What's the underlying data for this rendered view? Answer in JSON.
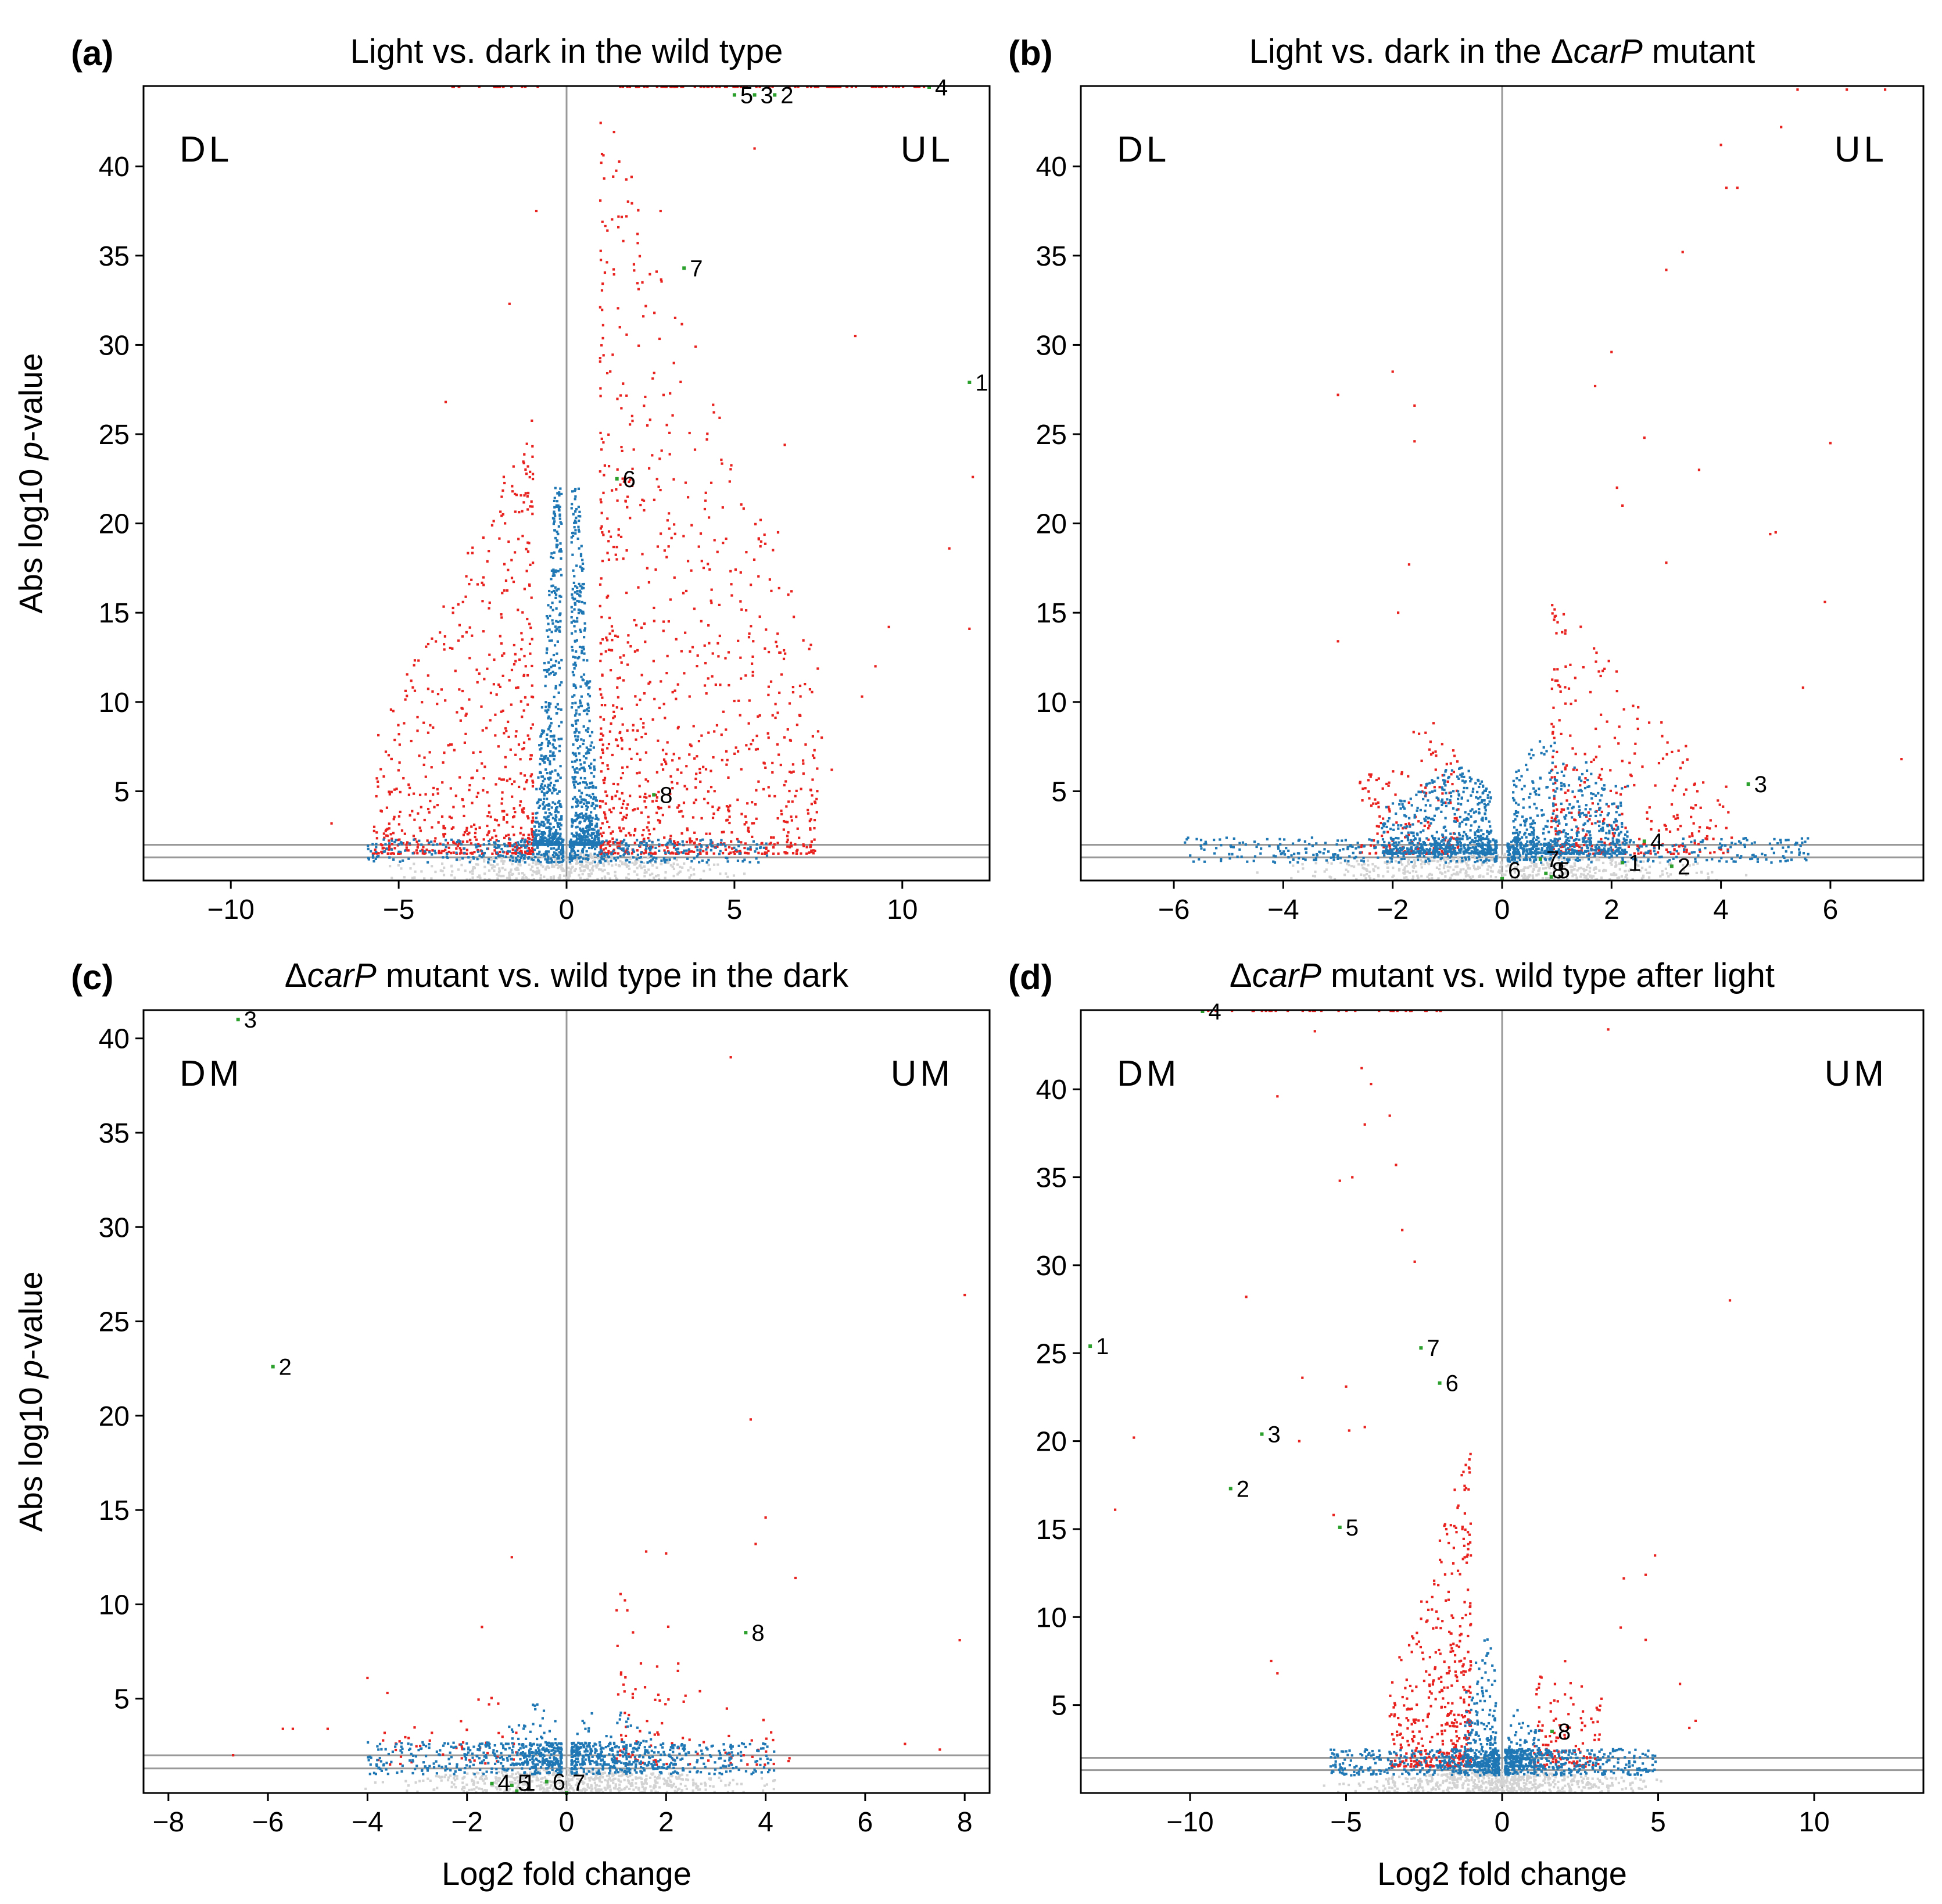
{
  "figure": {
    "y_label_prefix": "Abs log10 ",
    "y_label_italic": "p",
    "y_label_suffix": "-value",
    "x_label": "Log2 fold change"
  },
  "colors": {
    "significant": "#e8221f",
    "moderate": "#1f77b4",
    "nonsignificant": "#d3d3d3",
    "highlight": "#2ca02c",
    "threshold_line": "#999999"
  },
  "chart_data": [
    {
      "type": "scatter",
      "id": "a",
      "letter": "(a)",
      "title_parts": [
        {
          "t": "Light vs. dark in the wild type",
          "i": false
        }
      ],
      "xlim": [
        -12.6,
        12.6
      ],
      "ylim": [
        0,
        44.5
      ],
      "xticks": [
        -10,
        -5,
        0,
        5,
        10
      ],
      "yticks": [
        5,
        10,
        15,
        20,
        25,
        30,
        35,
        40
      ],
      "thresholds": [
        1.3,
        2.0
      ],
      "regions": {
        "left": "DL",
        "right": "UL"
      },
      "show_xlabel": false,
      "show_ylabel": true,
      "clouds": [
        {
          "kind": "ns",
          "x": [
            -6,
            6
          ],
          "ymax": 1.6,
          "n": 420
        },
        {
          "kind": "blue",
          "side": "neg",
          "x": [
            -6,
            -0.1
          ],
          "ymax": 2.1,
          "n": 260
        },
        {
          "kind": "blue",
          "side": "pos",
          "x": [
            0.1,
            6
          ],
          "ymax": 2.1,
          "n": 260
        },
        {
          "kind": "blue",
          "side": "neg",
          "x": [
            -1.0,
            -0.15
          ],
          "ymax": 22,
          "n": 520,
          "shape": "neck"
        },
        {
          "kind": "blue",
          "side": "pos",
          "x": [
            0.15,
            1.0
          ],
          "ymax": 22,
          "n": 520,
          "shape": "neck"
        },
        {
          "kind": "red",
          "side": "neg",
          "x": [
            -5.8,
            -1.0
          ],
          "ymax": 26,
          "n": 620,
          "shape": "tri"
        },
        {
          "kind": "red",
          "side": "pos",
          "x": [
            1.0,
            7.5
          ],
          "ymax": 44,
          "n": 950,
          "shape": "tri"
        }
      ],
      "extra_points": [
        [
          -0.9,
          37.5
        ],
        [
          -7.0,
          3.2
        ],
        [
          -3.6,
          26.8
        ],
        [
          8.6,
          30.5
        ],
        [
          12.1,
          22.6
        ],
        [
          11.4,
          18.6
        ],
        [
          12.0,
          14.1
        ],
        [
          9.6,
          14.2
        ],
        [
          9.2,
          12.0
        ],
        [
          8.8,
          10.3
        ],
        [
          6.7,
          16.2
        ],
        [
          7.1,
          11.0
        ],
        [
          6.3,
          19.5
        ],
        [
          6.5,
          24.4
        ],
        [
          7.6,
          8.0
        ],
        [
          7.9,
          6.2
        ],
        [
          -2.9,
          16.6
        ],
        [
          -1.7,
          32.3
        ],
        [
          2.8,
          37.5
        ],
        [
          5.6,
          41.0
        ]
      ],
      "top_band": [
        {
          "x": [
            -3.4,
            -0.8
          ],
          "y": 44.5,
          "n": 18
        },
        {
          "x": [
            1.6,
            10.8
          ],
          "y": 44.5,
          "n": 90
        }
      ],
      "labels": [
        {
          "n": "1",
          "x": 12.0,
          "y": 27.9
        },
        {
          "n": "2",
          "x": 6.2,
          "y": 44.0
        },
        {
          "n": "3",
          "x": 5.6,
          "y": 44.0
        },
        {
          "n": "4",
          "x": 10.8,
          "y": 44.5
        },
        {
          "n": "5",
          "x": 5.0,
          "y": 44.0
        },
        {
          "n": "6",
          "x": 1.5,
          "y": 22.5
        },
        {
          "n": "7",
          "x": 3.5,
          "y": 34.3
        },
        {
          "n": "8",
          "x": 2.6,
          "y": 4.8
        }
      ]
    },
    {
      "type": "scatter",
      "id": "b",
      "letter": "(b)",
      "title_parts": [
        {
          "t": "Light vs. dark in the Δ",
          "i": false
        },
        {
          "t": "carP",
          "i": true
        },
        {
          "t": " mutant",
          "i": false
        }
      ],
      "xlim": [
        -7.7,
        7.7
      ],
      "ylim": [
        0,
        44.5
      ],
      "xticks": [
        -6,
        -4,
        -2,
        0,
        2,
        4,
        6
      ],
      "yticks": [
        5,
        10,
        15,
        20,
        25,
        30,
        35,
        40
      ],
      "thresholds": [
        1.3,
        2.0
      ],
      "regions": {
        "left": "DL",
        "right": "UL"
      },
      "show_xlabel": false,
      "show_ylabel": false,
      "clouds": [
        {
          "kind": "ns",
          "x": [
            -5,
            5
          ],
          "ymax": 1.5,
          "n": 520
        },
        {
          "kind": "blue",
          "side": "neg",
          "x": [
            -5.8,
            -0.1
          ],
          "ymax": 2.2,
          "n": 340
        },
        {
          "kind": "blue",
          "side": "pos",
          "x": [
            0.1,
            5.6
          ],
          "ymax": 2.2,
          "n": 340
        },
        {
          "kind": "blue",
          "side": "neg",
          "x": [
            -2.2,
            -0.2
          ],
          "ymax": 6.5,
          "n": 520,
          "shape": "dome"
        },
        {
          "kind": "blue",
          "side": "pos",
          "x": [
            0.2,
            2.3
          ],
          "ymax": 8,
          "n": 480,
          "shape": "dome"
        },
        {
          "kind": "red",
          "side": "neg",
          "x": [
            -2.6,
            -0.8
          ],
          "ymax": 9,
          "n": 170,
          "shape": "dome"
        },
        {
          "kind": "red",
          "side": "pos",
          "x": [
            0.9,
            4.2
          ],
          "ymax": 16,
          "n": 330,
          "shape": "tri"
        }
      ],
      "extra_points": [
        [
          -2.0,
          28.5
        ],
        [
          -1.6,
          26.6
        ],
        [
          -3.0,
          27.2
        ],
        [
          -1.6,
          24.6
        ],
        [
          -1.7,
          17.7
        ],
        [
          -1.9,
          15.0
        ],
        [
          -3.0,
          13.4
        ],
        [
          3.0,
          34.2
        ],
        [
          2.0,
          29.6
        ],
        [
          1.7,
          27.7
        ],
        [
          2.6,
          24.8
        ],
        [
          3.6,
          23.0
        ],
        [
          4.0,
          41.2
        ],
        [
          4.1,
          38.8
        ],
        [
          4.3,
          38.8
        ],
        [
          5.1,
          42.2
        ],
        [
          6.0,
          24.5
        ],
        [
          5.0,
          19.5
        ],
        [
          4.9,
          19.4
        ],
        [
          5.9,
          15.6
        ],
        [
          5.5,
          10.8
        ],
        [
          7.3,
          6.8
        ],
        [
          3.3,
          35.2
        ],
        [
          3.0,
          17.8
        ],
        [
          2.1,
          22.0
        ],
        [
          2.2,
          21.0
        ],
        [
          5.4,
          44.3
        ],
        [
          6.3,
          44.3
        ],
        [
          7.0,
          44.3
        ]
      ],
      "top_band": [],
      "labels": [
        {
          "n": "1",
          "x": 2.2,
          "y": 1.0
        },
        {
          "n": "2",
          "x": 3.1,
          "y": 0.8
        },
        {
          "n": "3",
          "x": 4.5,
          "y": 5.4
        },
        {
          "n": "4",
          "x": 2.6,
          "y": 2.2
        },
        {
          "n": "5",
          "x": 0.9,
          "y": 0.2
        },
        {
          "n": "6",
          "x": 0.0,
          "y": 0.1
        },
        {
          "n": "7",
          "x": 0.7,
          "y": 1.2
        },
        {
          "n": "8",
          "x": 0.8,
          "y": 0.4
        }
      ]
    },
    {
      "type": "scatter",
      "id": "c",
      "letter": "(c)",
      "title_parts": [
        {
          "t": "Δ",
          "i": false
        },
        {
          "t": "carP",
          "i": true
        },
        {
          "t": " mutant vs. wild type in the dark",
          "i": false
        }
      ],
      "xlim": [
        -8.5,
        8.5
      ],
      "ylim": [
        0,
        41.5
      ],
      "xticks": [
        -8,
        -6,
        -4,
        -2,
        0,
        2,
        4,
        6,
        8
      ],
      "yticks": [
        5,
        10,
        15,
        20,
        25,
        30,
        35,
        40
      ],
      "thresholds": [
        1.3,
        2.0
      ],
      "regions": {
        "left": "DM",
        "right": "UM"
      },
      "show_xlabel": true,
      "show_ylabel": true,
      "clouds": [
        {
          "kind": "ns",
          "x": [
            -4.5,
            5
          ],
          "ymax": 1.3,
          "n": 560
        },
        {
          "kind": "blue",
          "side": "neg",
          "x": [
            -4.0,
            -0.1
          ],
          "ymax": 2.5,
          "n": 380
        },
        {
          "kind": "blue",
          "side": "pos",
          "x": [
            0.1,
            4.2
          ],
          "ymax": 2.5,
          "n": 420
        },
        {
          "kind": "blue",
          "side": "neg",
          "x": [
            -1.2,
            -0.2
          ],
          "ymax": 5,
          "n": 80,
          "shape": "dome"
        },
        {
          "kind": "blue",
          "side": "pos",
          "x": [
            0.2,
            2.2
          ],
          "ymax": 4.5,
          "n": 90,
          "shape": "dome"
        },
        {
          "kind": "red",
          "side": "neg",
          "x": [
            -3.8,
            -1.0
          ],
          "ymax": 5.5,
          "n": 45,
          "shape": "dome"
        },
        {
          "kind": "red",
          "side": "pos",
          "x": [
            1.0,
            4.6
          ],
          "ymax": 11,
          "n": 95,
          "shape": "tri"
        }
      ],
      "extra_points": [
        [
          3.3,
          39.0
        ],
        [
          8.0,
          26.4
        ],
        [
          3.7,
          19.8
        ],
        [
          4.0,
          14.6
        ],
        [
          3.8,
          13.2
        ],
        [
          1.6,
          12.8
        ],
        [
          2.0,
          12.7
        ],
        [
          -1.1,
          12.5
        ],
        [
          4.6,
          11.4
        ],
        [
          7.9,
          8.1
        ],
        [
          -1.7,
          8.8
        ],
        [
          -5.7,
          3.4
        ],
        [
          -5.5,
          3.4
        ],
        [
          -4.8,
          3.4
        ],
        [
          -6.7,
          2.0
        ],
        [
          7.5,
          2.3
        ],
        [
          6.8,
          2.6
        ],
        [
          -4.0,
          6.1
        ],
        [
          -3.6,
          5.3
        ]
      ],
      "top_band": [],
      "labels": [
        {
          "n": "1",
          "x": -1.0,
          "y": 0.1
        },
        {
          "n": "2",
          "x": -5.9,
          "y": 22.6
        },
        {
          "n": "3",
          "x": -6.6,
          "y": 41.0
        },
        {
          "n": "4",
          "x": -1.5,
          "y": 0.5
        },
        {
          "n": "5",
          "x": -1.1,
          "y": 0.4
        },
        {
          "n": "6",
          "x": -0.4,
          "y": 0.6
        },
        {
          "n": "7",
          "x": 0.0,
          "y": 0.0
        },
        {
          "n": "8",
          "x": 3.6,
          "y": 8.5
        }
      ]
    },
    {
      "type": "scatter",
      "id": "d",
      "letter": "(d)",
      "title_parts": [
        {
          "t": "Δ",
          "i": false
        },
        {
          "t": "carP",
          "i": true
        },
        {
          "t": " mutant vs. wild type after light",
          "i": false
        }
      ],
      "xlim": [
        -13.5,
        13.5
      ],
      "ylim": [
        0,
        44.5
      ],
      "xticks": [
        -10,
        -5,
        0,
        5,
        10
      ],
      "yticks": [
        5,
        10,
        15,
        20,
        25,
        30,
        35,
        40
      ],
      "thresholds": [
        1.3,
        2.0
      ],
      "regions": {
        "left": "DM",
        "right": "UM"
      },
      "show_xlabel": true,
      "show_ylabel": false,
      "clouds": [
        {
          "kind": "ns",
          "x": [
            -6,
            6
          ],
          "ymax": 1.3,
          "n": 560
        },
        {
          "kind": "blue",
          "side": "neg",
          "x": [
            -5.5,
            -0.1
          ],
          "ymax": 2.3,
          "n": 380
        },
        {
          "kind": "blue",
          "side": "pos",
          "x": [
            0.1,
            5.0
          ],
          "ymax": 2.3,
          "n": 380
        },
        {
          "kind": "blue",
          "side": "neg",
          "x": [
            -1.2,
            -0.2
          ],
          "ymax": 9,
          "n": 200,
          "shape": "dome"
        },
        {
          "kind": "blue",
          "side": "pos",
          "x": [
            0.2,
            1.3
          ],
          "ymax": 5,
          "n": 110,
          "shape": "dome"
        },
        {
          "kind": "red",
          "side": "neg",
          "x": [
            -3.6,
            -1.0
          ],
          "ymax": 20,
          "n": 460,
          "shape": "tri"
        },
        {
          "kind": "red",
          "side": "pos",
          "x": [
            1.0,
            3.2
          ],
          "ymax": 8,
          "n": 120,
          "shape": "dome"
        }
      ],
      "extra_points": [
        [
          -12.4,
          16.1
        ],
        [
          -11.8,
          20.2
        ],
        [
          -8.2,
          28.2
        ],
        [
          -7.2,
          39.6
        ],
        [
          -6.0,
          43.3
        ],
        [
          -6.4,
          23.6
        ],
        [
          -6.5,
          20.0
        ],
        [
          -7.4,
          7.5
        ],
        [
          -7.2,
          6.8
        ],
        [
          -4.5,
          41.2
        ],
        [
          -4.2,
          40.3
        ],
        [
          -4.4,
          38.0
        ],
        [
          -3.6,
          38.5
        ],
        [
          -3.4,
          35.7
        ],
        [
          -5.2,
          34.8
        ],
        [
          -4.8,
          35.0
        ],
        [
          -3.2,
          32.0
        ],
        [
          -2.8,
          30.2
        ],
        [
          -5.0,
          23.1
        ],
        [
          -5.4,
          15.8
        ],
        [
          -4.4,
          20.8
        ],
        [
          -4.9,
          20.6
        ],
        [
          7.3,
          28.0
        ],
        [
          3.4,
          43.4
        ],
        [
          4.6,
          12.4
        ],
        [
          4.9,
          13.5
        ],
        [
          3.9,
          12.2
        ],
        [
          5.7,
          6.2
        ],
        [
          6.2,
          4.1
        ],
        [
          6.0,
          3.7
        ],
        [
          3.8,
          9.4
        ],
        [
          4.6,
          8.7
        ]
      ],
      "top_band": [
        {
          "x": [
            -9.6,
            -1.8
          ],
          "y": 44.5,
          "n": 34
        }
      ],
      "labels": [
        {
          "n": "1",
          "x": -13.2,
          "y": 25.4
        },
        {
          "n": "2",
          "x": -8.7,
          "y": 17.3
        },
        {
          "n": "3",
          "x": -7.7,
          "y": 20.4
        },
        {
          "n": "4",
          "x": -9.6,
          "y": 44.5
        },
        {
          "n": "5",
          "x": -5.2,
          "y": 15.1
        },
        {
          "n": "6",
          "x": -2.0,
          "y": 23.3
        },
        {
          "n": "7",
          "x": -2.6,
          "y": 25.3
        },
        {
          "n": "8",
          "x": 1.6,
          "y": 3.5
        }
      ]
    }
  ]
}
